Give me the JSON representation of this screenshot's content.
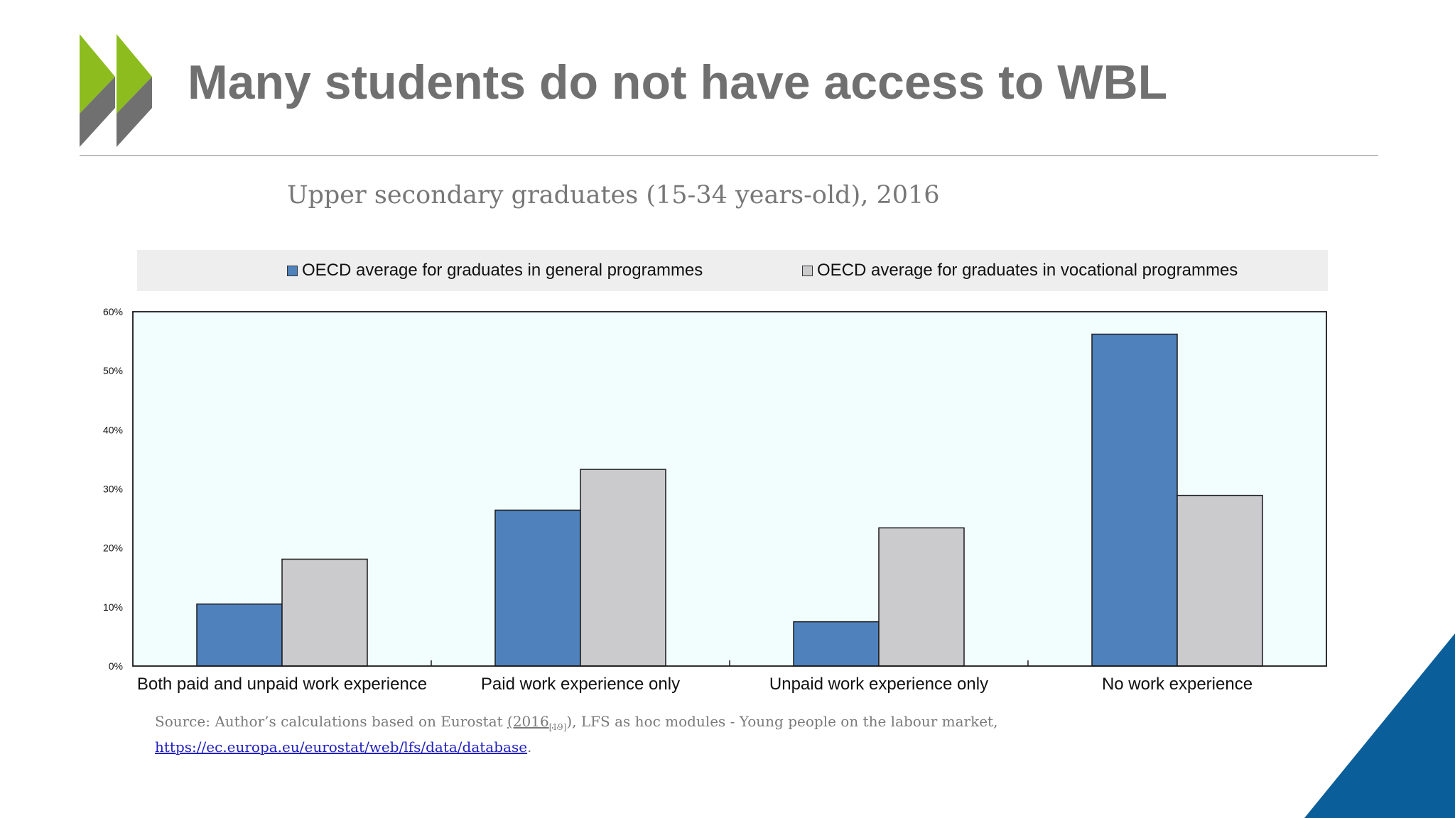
{
  "slide": {
    "title": "Many students do not have access to WBL"
  },
  "brand": {
    "green": "#8cbc1e",
    "grey": "#707070",
    "corner_blue": "#0a5f9a"
  },
  "source": {
    "prefix": "Source: Author’s calculations based on Eurostat ",
    "ref": "(2016",
    "ref_sub": "[19]",
    "ref_close": ")",
    "suffix": ", LFS as hoc modules - Young people on the labour market,",
    "link": "https://ec.europa.eu/eurostat/web/lfs/data/database",
    "end": "."
  },
  "chart_data": {
    "type": "bar",
    "title": "Upper secondary graduates (15-34 years-old), 2016",
    "categories": [
      "Both paid and unpaid work experience",
      "Paid work experience only",
      "Unpaid work experience only",
      "No work experience"
    ],
    "series": [
      {
        "name": "OECD average for graduates in general programmes",
        "color": "#4f81bd",
        "values": [
          10.5,
          26.4,
          7.5,
          56.2
        ]
      },
      {
        "name": "OECD average for graduates in vocational programmes",
        "color": "#cbcbcd",
        "values": [
          18.1,
          33.3,
          23.4,
          28.9
        ]
      }
    ],
    "y_ticks": [
      "0%",
      "10%",
      "20%",
      "30%",
      "40%",
      "50%",
      "60%"
    ],
    "ylim": [
      0,
      60
    ],
    "legend_position": "top",
    "plot_background": "#f2fdfe",
    "grid": false
  }
}
